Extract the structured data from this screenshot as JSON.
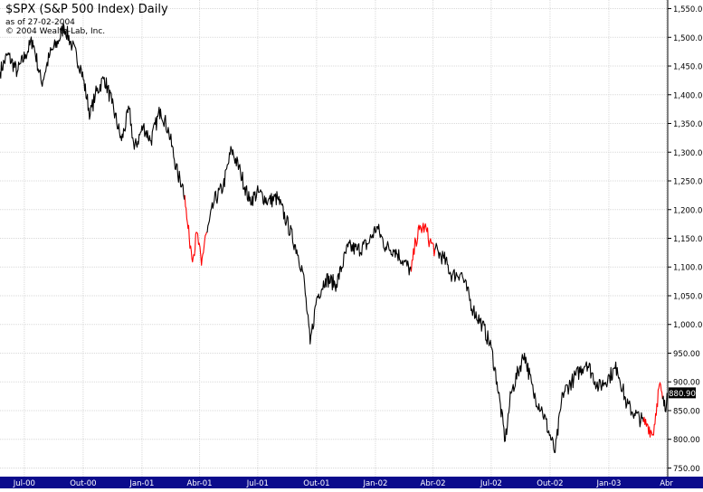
{
  "header": {
    "title": "$SPX (S&P 500 Index) Daily",
    "as_of": "as of 27-02-2004",
    "copyright": "© 2004 Wealth-Lab, Inc."
  },
  "colors": {
    "price": "#000000",
    "highlight": "#ff0000",
    "grid": "#d9d9d9",
    "axis_bar": "#0b0b8c",
    "axis_text": "#000000",
    "last_box": "#000000"
  },
  "last_value_label": "880.90",
  "chart_data": {
    "type": "line",
    "title": "$SPX (S&P 500 Index) Daily",
    "xlabel": "",
    "ylabel": "",
    "ylim": [
      735,
      1565
    ],
    "grid": true,
    "y_ticks": [
      1550,
      1500,
      1450,
      1400,
      1350,
      1300,
      1250,
      1200,
      1150,
      1100,
      1050,
      1000,
      950,
      900,
      850,
      800,
      750
    ],
    "y_tick_labels": [
      "1,550.00",
      "1,500.00",
      "1,450.00",
      "1,400.00",
      "1,350.00",
      "1,300.00",
      "1,250.00",
      "1,200.00",
      "1,150.00",
      "1,100.00",
      "1,050.00",
      "1,000.00",
      "950.00",
      "900.00",
      "850.00",
      "800.00",
      "750.00"
    ],
    "x_tick_labels": [
      "Jul-00",
      "Out-00",
      "Jan-01",
      "Abr-01",
      "Jul-01",
      "Out-01",
      "Jan-02",
      "Abr-02",
      "Jul-02",
      "Out-02",
      "Jan-03",
      "Abr"
    ],
    "series": [
      {
        "color": "#000000",
        "points": [
          [
            "2000-05-24",
            1440
          ],
          [
            "2000-06-05",
            1470
          ],
          [
            "2000-06-20",
            1440
          ],
          [
            "2000-07-03",
            1470
          ],
          [
            "2000-07-14",
            1495
          ],
          [
            "2000-07-28",
            1420
          ],
          [
            "2000-08-10",
            1470
          ],
          [
            "2000-08-24",
            1495
          ],
          [
            "2000-09-01",
            1520
          ],
          [
            "2000-09-14",
            1485
          ],
          [
            "2000-09-28",
            1445
          ],
          [
            "2000-10-12",
            1365
          ],
          [
            "2000-10-20",
            1400
          ],
          [
            "2000-11-03",
            1430
          ],
          [
            "2000-11-15",
            1385
          ],
          [
            "2000-11-30",
            1320
          ],
          [
            "2000-12-12",
            1375
          ],
          [
            "2000-12-20",
            1305
          ],
          [
            "2001-01-03",
            1345
          ],
          [
            "2001-01-15",
            1320
          ],
          [
            "2001-01-30",
            1375
          ],
          [
            "2001-02-12",
            1335
          ],
          [
            "2001-02-26",
            1260
          ],
          [
            "2001-03-05",
            1245
          ],
          [
            "2001-03-09",
            1225
          ]
        ]
      },
      {
        "color": "#ff0000",
        "points": [
          [
            "2001-03-09",
            1225
          ],
          [
            "2001-03-12",
            1185
          ],
          [
            "2001-03-16",
            1150
          ],
          [
            "2001-03-22",
            1117
          ],
          [
            "2001-03-28",
            1160
          ],
          [
            "2001-04-04",
            1103
          ],
          [
            "2001-04-10",
            1155
          ],
          [
            "2001-04-13",
            1160
          ]
        ]
      },
      {
        "color": "#000000",
        "points": [
          [
            "2001-04-13",
            1160
          ],
          [
            "2001-04-24",
            1215
          ],
          [
            "2001-05-08",
            1240
          ],
          [
            "2001-05-21",
            1305
          ],
          [
            "2001-06-04",
            1265
          ],
          [
            "2001-06-18",
            1215
          ],
          [
            "2001-07-02",
            1230
          ],
          [
            "2001-07-17",
            1215
          ],
          [
            "2001-08-01",
            1220
          ],
          [
            "2001-08-15",
            1180
          ],
          [
            "2001-08-31",
            1130
          ],
          [
            "2001-09-10",
            1090
          ],
          [
            "2001-09-21",
            966
          ],
          [
            "2001-10-01",
            1045
          ],
          [
            "2001-10-15",
            1080
          ],
          [
            "2001-11-01",
            1070
          ],
          [
            "2001-11-19",
            1135
          ],
          [
            "2001-12-04",
            1130
          ],
          [
            "2001-12-20",
            1140
          ],
          [
            "2002-01-03",
            1170
          ],
          [
            "2002-01-17",
            1135
          ],
          [
            "2002-01-31",
            1130
          ],
          [
            "2002-02-14",
            1110
          ],
          [
            "2002-02-26",
            1092
          ]
        ]
      },
      {
        "color": "#ff0000",
        "points": [
          [
            "2002-02-26",
            1092
          ],
          [
            "2002-03-05",
            1146
          ],
          [
            "2002-03-11",
            1165
          ],
          [
            "2002-03-19",
            1170
          ],
          [
            "2002-03-27",
            1145
          ],
          [
            "2002-04-04",
            1130
          ]
        ]
      },
      {
        "color": "#000000",
        "points": [
          [
            "2002-04-04",
            1130
          ],
          [
            "2002-04-18",
            1115
          ],
          [
            "2002-05-01",
            1085
          ],
          [
            "2002-05-15",
            1090
          ],
          [
            "2002-06-03",
            1025
          ],
          [
            "2002-06-17",
            1000
          ],
          [
            "2002-07-01",
            960
          ],
          [
            "2002-07-10",
            900
          ],
          [
            "2002-07-23",
            797
          ],
          [
            "2002-08-01",
            880
          ],
          [
            "2002-08-22",
            950
          ],
          [
            "2002-09-05",
            880
          ],
          [
            "2002-09-19",
            850
          ],
          [
            "2002-10-09",
            777
          ],
          [
            "2002-10-21",
            880
          ],
          [
            "2002-11-07",
            905
          ],
          [
            "2002-11-27",
            935
          ],
          [
            "2002-12-16",
            890
          ],
          [
            "2003-01-02",
            910
          ],
          [
            "2003-01-14",
            925
          ],
          [
            "2003-01-29",
            860
          ],
          [
            "2003-02-10",
            845
          ],
          [
            "2003-02-24",
            830
          ]
        ]
      },
      {
        "color": "#ff0000",
        "points": [
          [
            "2003-02-24",
            830
          ],
          [
            "2003-03-03",
            825
          ],
          [
            "2003-03-11",
            808
          ],
          [
            "2003-03-17",
            862
          ],
          [
            "2003-03-21",
            895
          ],
          [
            "2003-03-26",
            870
          ]
        ]
      },
      {
        "color": "#000000",
        "points": [
          [
            "2003-03-26",
            870
          ],
          [
            "2003-03-31",
            848
          ],
          [
            "2003-04-02",
            880.9
          ]
        ]
      }
    ]
  }
}
